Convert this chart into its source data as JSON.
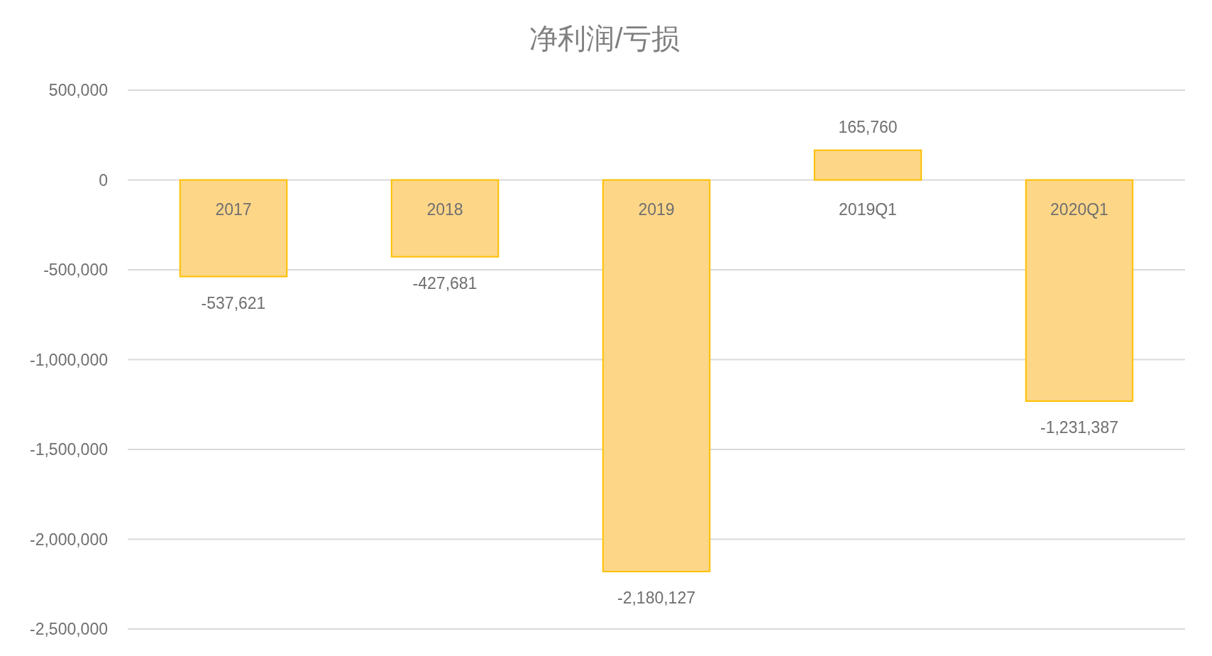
{
  "chart_data": {
    "type": "bar",
    "title": "净利润/亏损",
    "categories": [
      "2017",
      "2018",
      "2019",
      "2019Q1",
      "2020Q1"
    ],
    "values": [
      -537621,
      -427681,
      -2180127,
      165760,
      -1231387
    ],
    "value_labels": [
      "-537,621",
      "-427,681",
      "-2,180,127",
      "165,760",
      "-1,231,387"
    ],
    "color": "#fdd688",
    "ylim": [
      -2500000,
      500000
    ],
    "yticks": [
      {
        "value": -2500000,
        "label": "-2,500,000"
      },
      {
        "value": -2000000,
        "label": "-2,000,000"
      },
      {
        "value": -1500000,
        "label": "-1,500,000"
      },
      {
        "value": -1000000,
        "label": "-1,000,000"
      },
      {
        "value": -500000,
        "label": "-500,000"
      },
      0,
      {
        "value": 500000,
        "label": "500,000"
      }
    ],
    "grid": "y"
  }
}
